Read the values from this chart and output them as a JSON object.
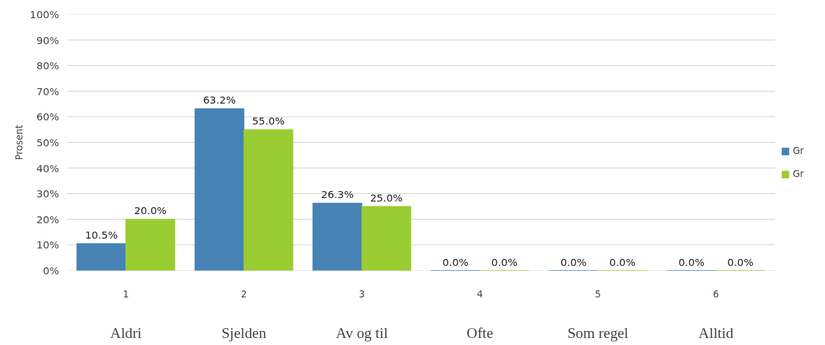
{
  "chart_data": {
    "type": "bar",
    "ylabel": "Prosent",
    "categories": [
      "1",
      "2",
      "3",
      "4",
      "5",
      "6"
    ],
    "series": [
      {
        "name": "Gr",
        "color": "#4682b4",
        "values": [
          10.5,
          63.2,
          26.3,
          0,
          0,
          0
        ],
        "value_labels": [
          "10.5%",
          "63.2%",
          "26.3%",
          "0.0%",
          "0.0%",
          "0.0%"
        ]
      },
      {
        "name": "Gr",
        "color": "#9acd32",
        "values": [
          20.0,
          55.0,
          25.0,
          0,
          0,
          0
        ],
        "value_labels": [
          "20.0%",
          "55.0%",
          "25.0%",
          "0.0%",
          "0.0%",
          "0.0%"
        ]
      }
    ],
    "ylim": [
      0,
      100
    ],
    "yticks": [
      {
        "value": 0,
        "label": "0%"
      },
      {
        "value": 10,
        "label": "10%"
      },
      {
        "value": 20,
        "label": "20%"
      },
      {
        "value": 30,
        "label": "30%"
      },
      {
        "value": 40,
        "label": "40%"
      },
      {
        "value": 50,
        "label": "50%"
      },
      {
        "value": 60,
        "label": "60%"
      },
      {
        "value": 70,
        "label": "70%"
      },
      {
        "value": 80,
        "label": "80%"
      },
      {
        "value": 90,
        "label": "90%"
      },
      {
        "value": 100,
        "label": "100%"
      }
    ],
    "annotations": [
      "Aldri",
      "Sjelden",
      "Av og til",
      "Ofte",
      "Som regel",
      "Alltid"
    ],
    "grid": "y",
    "legend": "right"
  }
}
